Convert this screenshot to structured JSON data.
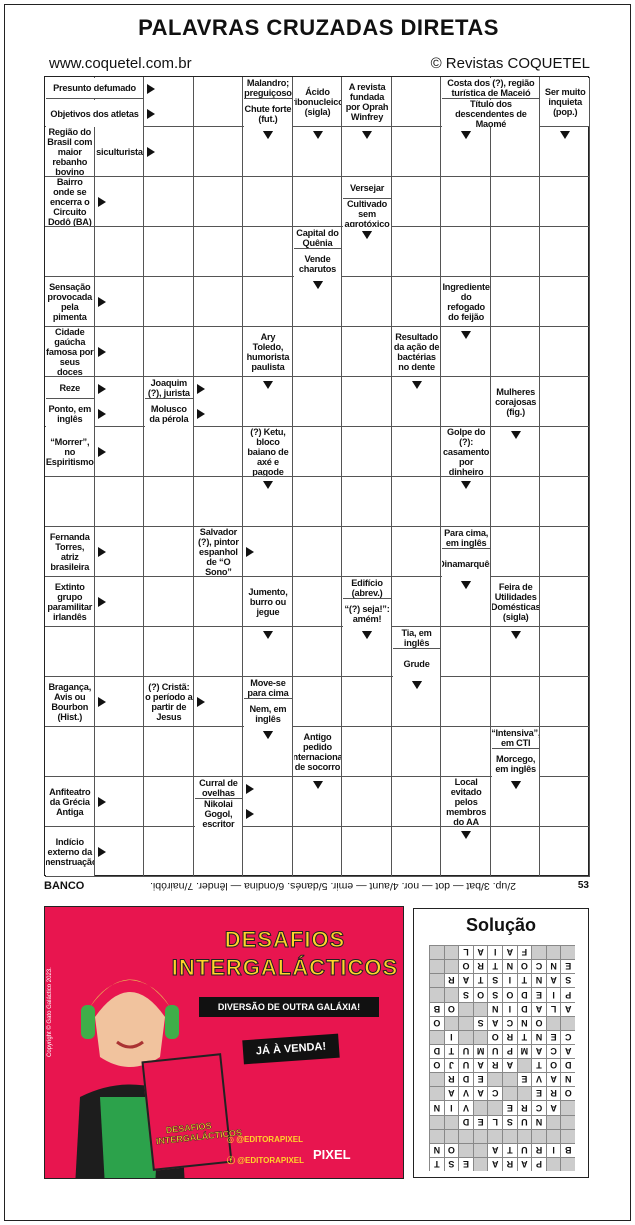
{
  "header": {
    "title": "PALAVRAS CRUZADAS DIRETAS",
    "site": "www.coquetel.com.br",
    "brand": "© Revistas COQUETEL"
  },
  "clues": [
    {
      "r": 0,
      "c": 0,
      "cs": 2,
      "text": "Presunto defumado",
      "part": "top"
    },
    {
      "r": 0,
      "c": 0,
      "cs": 2,
      "text": "Objetivos dos atletas",
      "part": "bottom"
    },
    {
      "r": 0,
      "c": 4,
      "text": "Malandro; preguiçoso",
      "part": "top"
    },
    {
      "r": 0,
      "c": 4,
      "text": "Chute forte (fut.)",
      "part": "bottom"
    },
    {
      "r": 0,
      "c": 5,
      "text": "Ácido ribonucleico (sigla)"
    },
    {
      "r": 0,
      "c": 6,
      "text": "A revista fundada por Oprah Winfrey"
    },
    {
      "r": 0,
      "c": 8,
      "cs": 2,
      "text": "Costa dos (?), região turística de Maceió",
      "part": "top"
    },
    {
      "r": 0,
      "c": 8,
      "cs": 2,
      "text": "Título dos descendentes de Maomé",
      "part": "bottom"
    },
    {
      "r": 0,
      "c": 10,
      "text": "Ser muito inquieta (pop.)"
    },
    {
      "r": 1,
      "c": 0,
      "text": "Região do Brasil com maior rebanho bovino"
    },
    {
      "r": 1,
      "c": 1,
      "text": "fisiculturistas"
    },
    {
      "r": 2,
      "c": 0,
      "text": "Bairro onde se encerra o Circuito Dodô (BA)"
    },
    {
      "r": 2,
      "c": 6,
      "text": "Versejar",
      "part": "top"
    },
    {
      "r": 2,
      "c": 6,
      "text": "Cultivado sem agrotóxico",
      "part": "bottom"
    },
    {
      "r": 3,
      "c": 5,
      "text": "Capital do Quênia",
      "part": "top"
    },
    {
      "r": 3,
      "c": 5,
      "text": "Vende charutos",
      "part": "bottom"
    },
    {
      "r": 4,
      "c": 0,
      "text": "Sensação provocada pela pimenta"
    },
    {
      "r": 4,
      "c": 8,
      "text": "Ingrediente do refogado do feijão"
    },
    {
      "r": 5,
      "c": 0,
      "text": "Cidade gaúcha famosa por seus doces"
    },
    {
      "r": 5,
      "c": 4,
      "text": "Ary Toledo, humorista paulista"
    },
    {
      "r": 5,
      "c": 7,
      "text": "Resultado da ação de bactérias no dente"
    },
    {
      "r": 6,
      "c": 0,
      "text": "Reze",
      "part": "top"
    },
    {
      "r": 6,
      "c": 0,
      "text": "Ponto, em inglês",
      "part": "bottom"
    },
    {
      "r": 6,
      "c": 2,
      "text": "Joaquim (?), jurista",
      "part": "top"
    },
    {
      "r": 6,
      "c": 2,
      "text": "Molusco da pérola",
      "part": "bottom"
    },
    {
      "r": 6,
      "c": 9,
      "text": "Mulheres corajosas (fig.)"
    },
    {
      "r": 7,
      "c": 0,
      "text": "“Morrer”, no Espiritismo"
    },
    {
      "r": 7,
      "c": 4,
      "text": "(?) Ketu, bloco baiano de axé e pagode"
    },
    {
      "r": 7,
      "c": 8,
      "text": "Golpe do (?): casamento por dinheiro"
    },
    {
      "r": 9,
      "c": 0,
      "text": "Fernanda Torres, atriz brasileira"
    },
    {
      "r": 9,
      "c": 3,
      "text": "Salvador (?), pintor espanhol de “O Sono”"
    },
    {
      "r": 9,
      "c": 8,
      "text": "Para cima, em inglês",
      "part": "top"
    },
    {
      "r": 9,
      "c": 8,
      "text": "Dinamarquês",
      "part": "bottom"
    },
    {
      "r": 10,
      "c": 0,
      "text": "Extinto grupo paramilitar irlandês"
    },
    {
      "r": 10,
      "c": 4,
      "text": "Jumento, burro ou jegue"
    },
    {
      "r": 10,
      "c": 6,
      "text": "Edifício (abrev.)",
      "part": "top"
    },
    {
      "r": 10,
      "c": 6,
      "text": "“(?) seja!”: amém!",
      "part": "bottom"
    },
    {
      "r": 10,
      "c": 9,
      "text": "Feira de Utilidades Domésticas (sigla)"
    },
    {
      "r": 11,
      "c": 7,
      "text": "Tia, em inglês",
      "part": "top"
    },
    {
      "r": 11,
      "c": 7,
      "text": "Grude",
      "part": "bottom"
    },
    {
      "r": 12,
      "c": 0,
      "text": "Bragança, Avis ou Bourbon (Hist.)"
    },
    {
      "r": 12,
      "c": 2,
      "text": "(?) Cristã: o período a partir de Jesus"
    },
    {
      "r": 12,
      "c": 4,
      "text": "Move-se para cima",
      "part": "top"
    },
    {
      "r": 12,
      "c": 4,
      "text": "Nem, em inglês",
      "part": "bottom"
    },
    {
      "r": 13,
      "c": 5,
      "text": "Antigo pedido internacional de socorro"
    },
    {
      "r": 13,
      "c": 9,
      "text": "“Intensiva”, em CTI",
      "part": "top"
    },
    {
      "r": 13,
      "c": 9,
      "text": "Morcego, em inglês",
      "part": "bottom"
    },
    {
      "r": 14,
      "c": 0,
      "text": "Anfiteatro da Grécia Antiga"
    },
    {
      "r": 14,
      "c": 3,
      "text": "Curral de ovelhas",
      "part": "top"
    },
    {
      "r": 14,
      "c": 3,
      "text": "Nikolai Gogol, escritor",
      "part": "bottom"
    },
    {
      "r": 14,
      "c": 8,
      "text": "Local evitado pelos membros do AA"
    },
    {
      "r": 15,
      "c": 0,
      "text": "Indício externo da menstruação"
    }
  ],
  "bank": {
    "label": "BANCO",
    "text": "2/up. 3/bat — dot — nor. 4/aunt — emir. 5/danés. 6/ondina — lênder. 7/nairóbi.",
    "page_number": "53"
  },
  "ad": {
    "title_line1": "DESAFIOS",
    "title_line2": "INTERGALÁCTICOS",
    "tagline": "DIVERSÃO DE OUTRA GALÁXIA!",
    "sale": "JÁ À VENDA!",
    "book_title": "DESAFIOS INTERGALÁCTICOS",
    "instagram": "@EDITORAPIXEL",
    "facebook": "@EDITORAPIXEL",
    "publisher": "PIXEL",
    "copyright": "Copyright © Gato Galáctico 2023."
  },
  "solution": {
    "title": "Solução",
    "rows": [
      "  PARA ESTADO",
      "BIRUTA  ON  ",
      "             ",
      "  NUSLED   I",
      " ACRE  VINO ",
      "ORE  CAVA  T",
      "NAVE  EDR  A",
      "DOT ARAUJOO ",
      "ACAMPUMUTDA ",
      "CENTRO  I  R",
      "  ONCAS  OSR",
      "ALADIN  OBOR",
      "PIEDOSOS  A ",
      "SANTISTAR   ",
      "ENCONTRO   C",
      "   FAIAL  EN"
    ]
  }
}
